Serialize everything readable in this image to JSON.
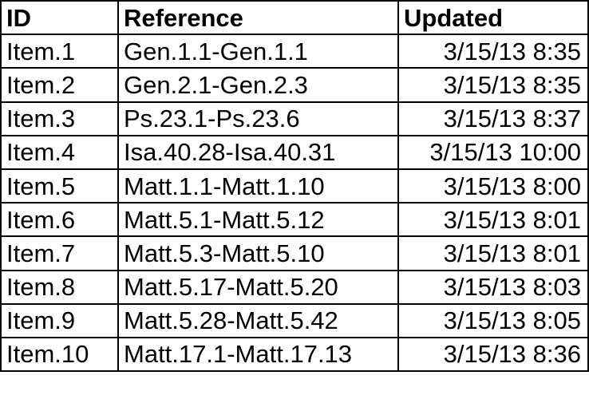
{
  "table": {
    "headers": {
      "id": "ID",
      "reference": "Reference",
      "updated": "Updated"
    },
    "rows": [
      {
        "id": "Item.1",
        "reference": "Gen.1.1-Gen.1.1",
        "updated": "3/15/13 8:35"
      },
      {
        "id": "Item.2",
        "reference": "Gen.2.1-Gen.2.3",
        "updated": "3/15/13 8:35"
      },
      {
        "id": "Item.3",
        "reference": "Ps.23.1-Ps.23.6",
        "updated": "3/15/13 8:37"
      },
      {
        "id": "Item.4",
        "reference": "Isa.40.28-Isa.40.31",
        "updated": "3/15/13 10:00"
      },
      {
        "id": "Item.5",
        "reference": "Matt.1.1-Matt.1.10",
        "updated": "3/15/13 8:00"
      },
      {
        "id": "Item.6",
        "reference": "Matt.5.1-Matt.5.12",
        "updated": "3/15/13 8:01"
      },
      {
        "id": "Item.7",
        "reference": "Matt.5.3-Matt.5.10",
        "updated": "3/15/13 8:01"
      },
      {
        "id": "Item.8",
        "reference": "Matt.5.17-Matt.5.20",
        "updated": "3/15/13 8:03"
      },
      {
        "id": "Item.9",
        "reference": "Matt.5.28-Matt.5.42",
        "updated": "3/15/13 8:05"
      },
      {
        "id": "Item.10",
        "reference": "Matt.17.1-Matt.17.13",
        "updated": "3/15/13 8:36"
      }
    ]
  }
}
